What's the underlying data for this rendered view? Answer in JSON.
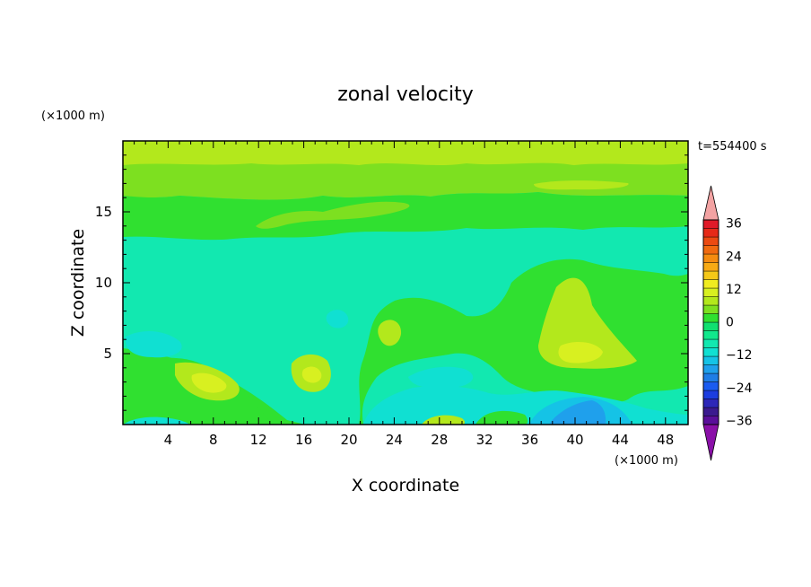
{
  "chart_data": {
    "type": "heatmap",
    "title": "zonal velocity",
    "time_label": "t=554400 s",
    "xlabel": "X coordinate",
    "ylabel": "Z coordinate",
    "x_unit": "(×1000 m)",
    "y_unit": "(×1000 m)",
    "xlim": [
      0,
      50
    ],
    "ylim": [
      0,
      20
    ],
    "x_ticks": [
      4,
      8,
      12,
      16,
      20,
      24,
      28,
      32,
      36,
      40,
      44,
      48
    ],
    "y_ticks": [
      5,
      10,
      15
    ],
    "colorbar": {
      "levels": [
        -42,
        -39,
        -36,
        -33,
        -30,
        -27,
        -24,
        -21,
        -18,
        -15,
        -12,
        -9,
        -6,
        -3,
        0,
        3,
        6,
        9,
        12,
        15,
        18,
        21,
        24,
        27,
        30,
        33,
        36,
        39,
        42
      ],
      "labels": [
        36,
        24,
        12,
        0,
        -12,
        -24,
        -36
      ],
      "colors": [
        "#5a0f9a",
        "#3b1a8f",
        "#2d27b8",
        "#1c3de0",
        "#1a5bf0",
        "#1f7de6",
        "#1fa0ec",
        "#15c3e6",
        "#10e0d2",
        "#12e8b0",
        "#10e88c",
        "#10e070",
        "#30e030",
        "#7de020",
        "#b3e81c",
        "#d8f020",
        "#f0ec20",
        "#f5c818",
        "#f7aa14",
        "#f58c10",
        "#f06a10",
        "#eb4a12",
        "#e62a18",
        "#e01a28"
      ],
      "under_color": "#8a10a8",
      "over_color": "#f3a3a3"
    },
    "field": {
      "description_levels_m_s": [
        -15,
        -12,
        -9,
        -6,
        -3,
        0,
        3,
        6,
        9,
        12
      ],
      "bands": [
        {
          "z": [
            0.0,
            1.5
          ],
          "value": -2
        },
        {
          "z": [
            1.5,
            13.0
          ],
          "value": 1
        },
        {
          "z": [
            13.0,
            16.0
          ],
          "value": 4
        },
        {
          "z": [
            16.0,
            18.8
          ],
          "value": 7
        },
        {
          "z": [
            18.8,
            20.0
          ],
          "value": 10
        }
      ],
      "features": [
        {
          "x": 8,
          "z": 3.2,
          "value": 10
        },
        {
          "x": 16.5,
          "z": 3.8,
          "value": 9
        },
        {
          "x": 40.5,
          "z": 5.2,
          "value": 10
        },
        {
          "x": 42,
          "z": 1.0,
          "value": -10
        },
        {
          "x": 28,
          "z": 2.0,
          "value": -6
        },
        {
          "x": 3,
          "z": 5.0,
          "value": -5
        }
      ]
    }
  }
}
